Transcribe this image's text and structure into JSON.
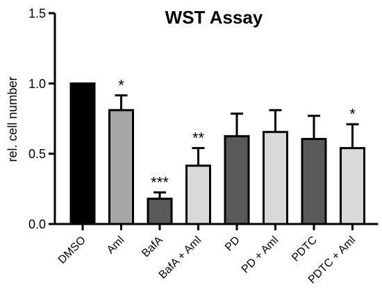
{
  "chart_data": {
    "type": "bar",
    "title": "WST Assay",
    "xlabel": "",
    "ylabel": "rel. cell number",
    "ylim": [
      0,
      1.5
    ],
    "yticks": [
      "0.0",
      "0.5",
      "1.0",
      "1.5"
    ],
    "ytick_values": [
      0,
      0.5,
      1.0,
      1.5
    ],
    "grid": false,
    "legend": "none",
    "categories": [
      "DMSO",
      "Aml",
      "BafA",
      "BafA + Aml",
      "PD",
      "PD + Aml",
      "PDTC",
      "PDTC + Aml"
    ],
    "values": [
      1.0,
      0.81,
      0.18,
      0.415,
      0.625,
      0.655,
      0.605,
      0.54
    ],
    "error_upper": [
      0,
      0.105,
      0.045,
      0.125,
      0.16,
      0.155,
      0.165,
      0.17
    ],
    "significance": [
      "",
      "*",
      "***",
      "**",
      "",
      "",
      "",
      "*"
    ],
    "bar_colors": [
      "#000000",
      "#a6a6a6",
      "#595959",
      "#d9d9d9",
      "#595959",
      "#d9d9d9",
      "#595959",
      "#d9d9d9"
    ]
  }
}
